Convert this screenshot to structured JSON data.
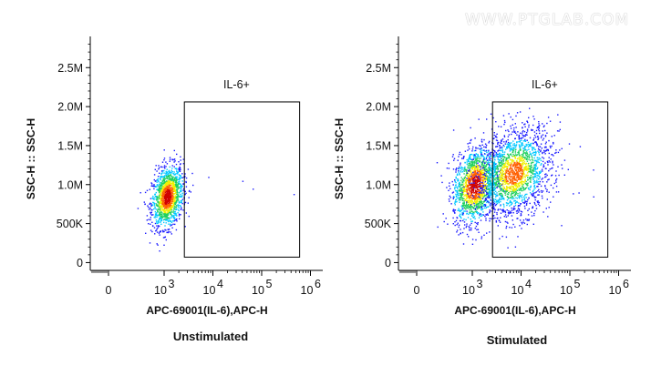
{
  "watermark": "WWW.PTGLAB.COM",
  "colors": {
    "density_low": "#1a1aff",
    "density_mid_low": "#00c8ff",
    "density_mid": "#20d060",
    "density_mid_high": "#f0f000",
    "density_high": "#ff6000",
    "density_peak": "#d00000",
    "axis": "#000000",
    "gate": "#000000"
  },
  "chart_data": [
    {
      "type": "scatter",
      "panel": "Unstimulated",
      "caption": "Unstimulated",
      "xlabel": "APC-69001(IL-6),APC-H",
      "ylabel": "SSC-H :: SSC-H",
      "x_scale": "biexponential",
      "x_ticks": [
        {
          "value": 0,
          "label": "0"
        },
        {
          "value": 1000,
          "label": "10",
          "exp": "3"
        },
        {
          "value": 10000,
          "label": "10",
          "exp": "4"
        },
        {
          "value": 100000,
          "label": "10",
          "exp": "5"
        },
        {
          "value": 1000000,
          "label": "10",
          "exp": "6"
        }
      ],
      "y_ticks": [
        {
          "value": 0,
          "label": "0"
        },
        {
          "value": 500000,
          "label": "500K"
        },
        {
          "value": 1000000,
          "label": "1.0M"
        },
        {
          "value": 1500000,
          "label": "1.5M"
        },
        {
          "value": 2000000,
          "label": "2.0M"
        },
        {
          "value": 2500000,
          "label": "2.5M"
        }
      ],
      "ylim": [
        -100000,
        2900000
      ],
      "gate": {
        "label": "IL-6+",
        "x_range": [
          2600,
          600000
        ],
        "y_range": [
          70000,
          2060000
        ]
      },
      "populations": [
        {
          "x_center": 1150,
          "x_spread_decades": 0.16,
          "y_center": 850000,
          "y_spread": 190000,
          "count": 1400
        }
      ],
      "sparse_points": [
        [
          3800,
          1000000
        ],
        [
          8000,
          1100000
        ],
        [
          40000,
          1050000
        ],
        [
          65000,
          950000
        ],
        [
          450000,
          880000
        ]
      ]
    },
    {
      "type": "scatter",
      "panel": "Stimulated",
      "caption": "Stimulated",
      "xlabel": "APC-69001(IL-6),APC-H",
      "ylabel": "SSC-H :: SSC-H",
      "x_scale": "biexponential",
      "x_ticks": [
        {
          "value": 0,
          "label": "0"
        },
        {
          "value": 1000,
          "label": "10",
          "exp": "3"
        },
        {
          "value": 10000,
          "label": "10",
          "exp": "4"
        },
        {
          "value": 100000,
          "label": "10",
          "exp": "5"
        },
        {
          "value": 1000000,
          "label": "10",
          "exp": "6"
        }
      ],
      "y_ticks": [
        {
          "value": 0,
          "label": "0"
        },
        {
          "value": 500000,
          "label": "500K"
        },
        {
          "value": 1000000,
          "label": "1.0M"
        },
        {
          "value": 1500000,
          "label": "1.5M"
        },
        {
          "value": 2000000,
          "label": "2.0M"
        },
        {
          "value": 2500000,
          "label": "2.5M"
        }
      ],
      "ylim": [
        -100000,
        2900000
      ],
      "gate": {
        "label": "IL-6+",
        "x_range": [
          2600,
          600000
        ],
        "y_range": [
          70000,
          2060000
        ]
      },
      "populations": [
        {
          "x_center": 1100,
          "x_spread_decades": 0.22,
          "y_center": 1000000,
          "y_spread": 230000,
          "count": 1500
        },
        {
          "x_center": 7000,
          "x_spread_decades": 0.38,
          "y_center": 1150000,
          "y_spread": 280000,
          "count": 1900
        }
      ],
      "sparse_points": [
        [
          90000,
          1200000
        ],
        [
          150000,
          900000
        ],
        [
          300000,
          850000
        ],
        [
          30000,
          1700000
        ],
        [
          60000,
          1450000
        ]
      ]
    }
  ]
}
